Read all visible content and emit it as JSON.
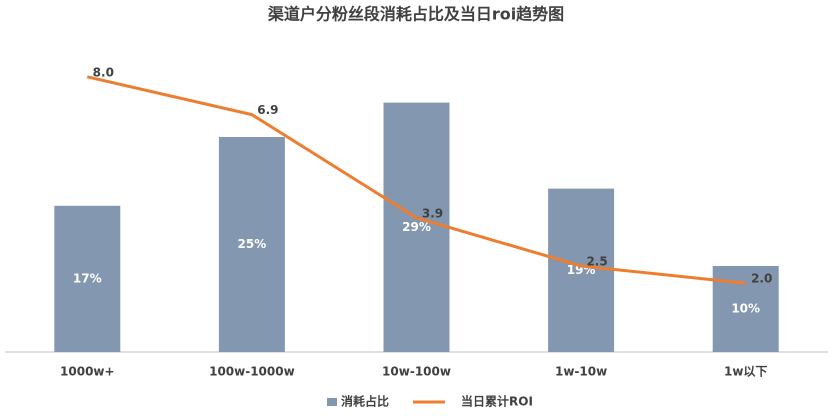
{
  "chart_data": {
    "type": "bar",
    "title": "渠道户分粉丝段消耗占比及当日roi趋势图",
    "categories": [
      "1000w+",
      "100w-1000w",
      "10w-100w",
      "1w-10w",
      "1w以下"
    ],
    "ylim": [
      0,
      40
    ],
    "y2lim": [
      0,
      10
    ],
    "legend": "bottom",
    "series": [
      {
        "name": "消耗占比",
        "type": "bar",
        "color": "#8497b0",
        "values": [
          17,
          25,
          29,
          19,
          10
        ],
        "value_labels": [
          "17%",
          "25%",
          "29%",
          "19%",
          "10%"
        ]
      },
      {
        "name": "当日累计ROI",
        "type": "line",
        "axis": "y2",
        "color": "#ed7d31",
        "values": [
          8.0,
          6.9,
          3.9,
          2.5,
          2.0
        ],
        "value_labels": [
          "8.0",
          "6.9",
          "3.9",
          "2.5",
          "2.0"
        ]
      }
    ]
  }
}
